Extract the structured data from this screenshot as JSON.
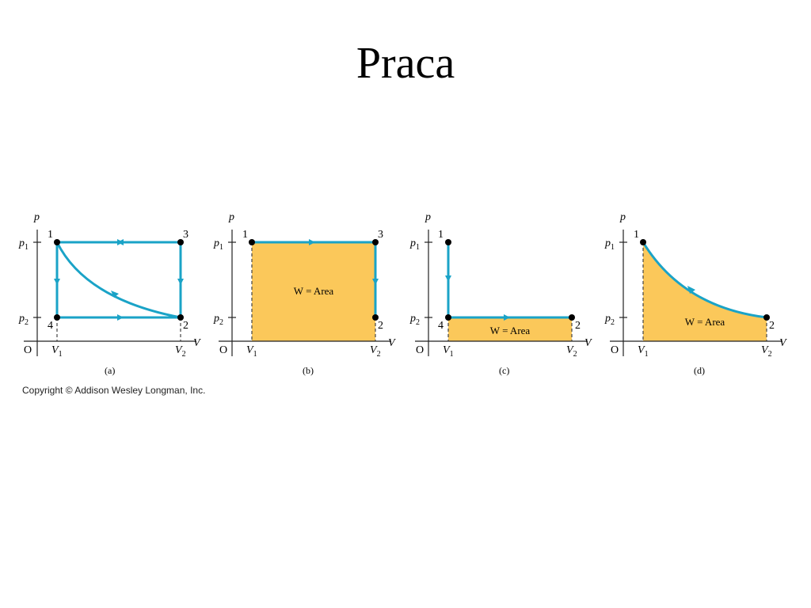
{
  "title": "Praca",
  "copyright": "Copyright © Addison Wesley Longman, Inc.",
  "colors": {
    "process": "#1aa3c7",
    "area_fill": "#fbc85a",
    "axis": "#222222",
    "point": "#000000"
  },
  "panels": [
    {
      "id": "a",
      "caption": "(a)",
      "area_label": "",
      "has_point3": true,
      "has_point4": true
    },
    {
      "id": "b",
      "caption": "(b)",
      "area_label": "W = Area",
      "has_point3": true,
      "has_point4": false
    },
    {
      "id": "c",
      "caption": "(c)",
      "area_label": "W = Area",
      "has_point3": false,
      "has_point4": true
    },
    {
      "id": "d",
      "caption": "(d)",
      "area_label": "W = Area",
      "has_point3": false,
      "has_point4": false
    }
  ],
  "labels": {
    "p_axis": "p",
    "v_axis": "V",
    "origin": "O",
    "p1": "1",
    "p2": "2",
    "v1": "1",
    "v2": "2",
    "pt1": "1",
    "pt2": "2",
    "pt3": "3",
    "pt4": "4"
  }
}
